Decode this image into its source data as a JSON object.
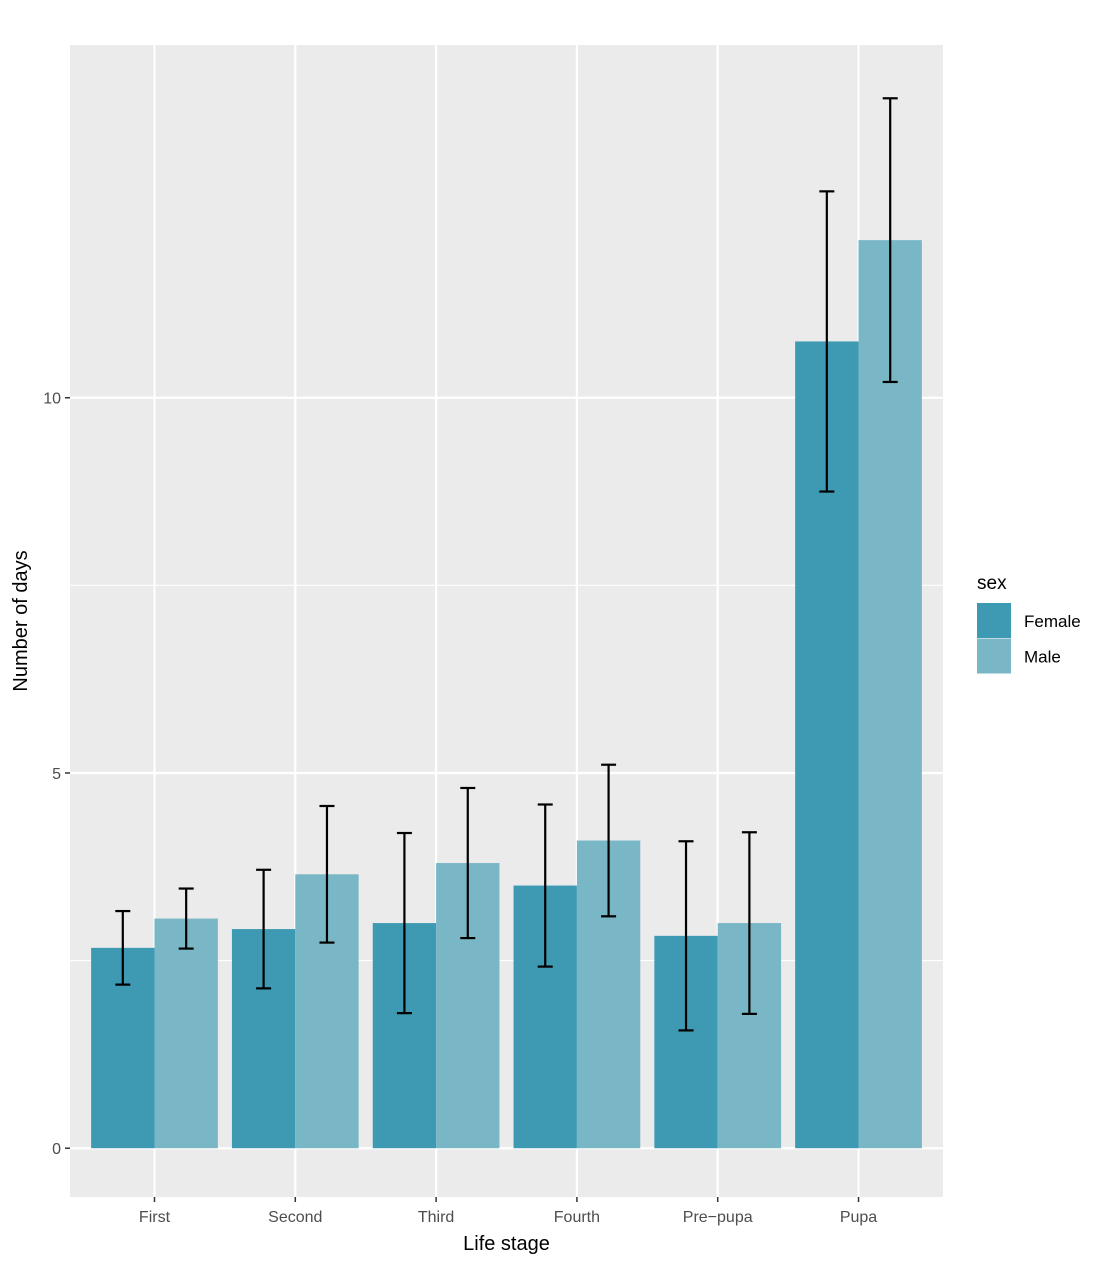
{
  "chart_data": {
    "type": "bar",
    "title": "",
    "xlabel": "Life stage",
    "ylabel": "Number of days",
    "categories": [
      "First",
      "Second",
      "Third",
      "Fourth",
      "Pre−pupa",
      "Pupa"
    ],
    "series": [
      {
        "name": "Female",
        "color": "#3d9ab2",
        "values": [
          2.67,
          2.92,
          3.0,
          3.5,
          2.83,
          10.75
        ],
        "error_low": [
          2.18,
          2.13,
          1.8,
          2.42,
          1.57,
          8.75
        ],
        "error_high": [
          3.16,
          3.71,
          4.2,
          4.58,
          4.09,
          12.75
        ]
      },
      {
        "name": "Male",
        "color": "#79b7c6",
        "values": [
          3.06,
          3.65,
          3.8,
          4.1,
          3.0,
          12.1
        ],
        "error_low": [
          2.66,
          2.74,
          2.8,
          3.09,
          1.79,
          10.21
        ],
        "error_high": [
          3.46,
          4.56,
          4.8,
          5.11,
          4.21,
          13.99
        ]
      }
    ],
    "ylim": [
      -0.65,
      14.7
    ],
    "yticks": [
      0,
      5,
      10
    ],
    "ytick_labels": [
      "0",
      "5",
      "10"
    ],
    "grid": true,
    "legend": {
      "title": "sex",
      "position": "right"
    }
  }
}
